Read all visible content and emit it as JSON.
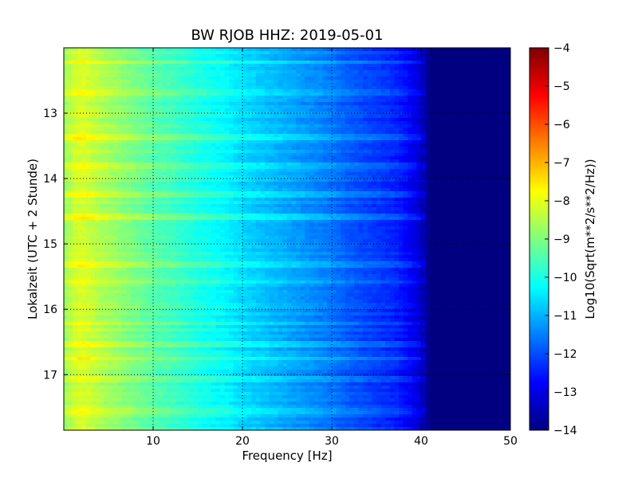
{
  "chart_data": {
    "type": "heatmap",
    "title": "BW RJOB HHZ: 2019-05-01",
    "xlabel": "Frequency [Hz]",
    "ylabel": "Lokalzeit (UTC + 2 Stunde)",
    "xlim": [
      0,
      50
    ],
    "ylim": [
      12.0,
      17.85
    ],
    "y_inverted": true,
    "x_ticks": [
      10,
      20,
      30,
      40,
      50
    ],
    "y_ticks": [
      13,
      14,
      15,
      16,
      17
    ],
    "grid": true,
    "colormap": "jet",
    "colorbar": {
      "label": "Log10(Sqrt(m**2/s**2/Hz))",
      "range": [
        -14,
        -4
      ],
      "ticks": [
        -4,
        -5,
        -6,
        -7,
        -8,
        -9,
        -10,
        -11,
        -12,
        -13,
        -14
      ]
    },
    "profile": {
      "frequency_hz": [
        0,
        1,
        2,
        4,
        6,
        8,
        10,
        12,
        15,
        18,
        20,
        22,
        25,
        28,
        30,
        32,
        35,
        37,
        38,
        39,
        40,
        40.5,
        41,
        50
      ],
      "log10_amplitude": [
        -8.8,
        -8.3,
        -8.1,
        -8.5,
        -8.8,
        -9.1,
        -9.4,
        -9.6,
        -10.0,
        -10.3,
        -10.6,
        -10.8,
        -11.1,
        -11.4,
        -11.6,
        -11.9,
        -12.2,
        -12.4,
        -12.6,
        -12.9,
        -13.2,
        -13.6,
        -14.0,
        -14.0
      ]
    },
    "bright_bands_hours": [
      12.22,
      12.7,
      13.38,
      13.8,
      14.25,
      14.6,
      15.3,
      15.58,
      16.22,
      16.52,
      16.75,
      17.08,
      17.55
    ]
  }
}
